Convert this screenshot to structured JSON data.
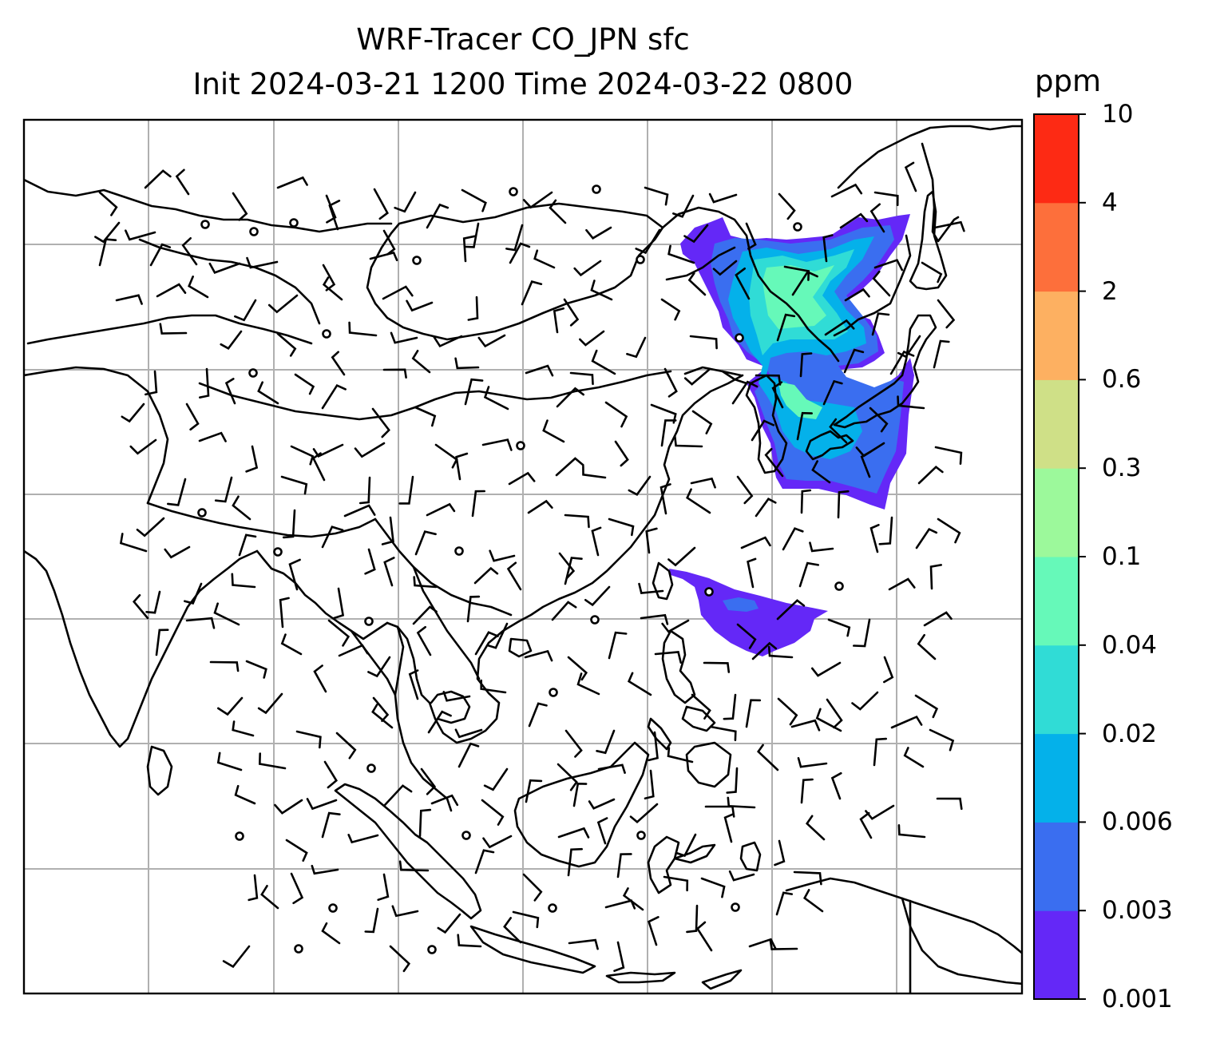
{
  "title": {
    "line1": "WRF-Tracer CO_JPN sfc",
    "line2": "Init 2024-03-21 1200 Time 2024-03-22 0800"
  },
  "colorbar": {
    "unit": "ppm",
    "levels": [
      "0.001",
      "0.003",
      "0.006",
      "0.02",
      "0.04",
      "0.1",
      "0.3",
      "0.6",
      "2",
      "4",
      "10"
    ],
    "colors": [
      "#6428f7",
      "#3a6ef0",
      "#04b1ea",
      "#30dcd6",
      "#66f9b9",
      "#9cf99b",
      "#cfe087",
      "#fdb061",
      "#fd6f3b",
      "#fd2a14"
    ]
  },
  "map": {
    "gridlines": true,
    "frame_color": "#000000",
    "grid_color": "#b0b0b0",
    "plume_label": "CO_JPN"
  }
}
